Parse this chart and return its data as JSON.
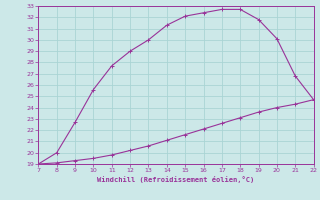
{
  "xlabel": "Windchill (Refroidissement éolien,°C)",
  "x_main": [
    7,
    8,
    9,
    10,
    11,
    12,
    13,
    14,
    15,
    16,
    17,
    18,
    19,
    20,
    21,
    22
  ],
  "y_main": [
    19.0,
    20.0,
    22.7,
    25.6,
    27.7,
    29.0,
    30.0,
    31.3,
    32.1,
    32.4,
    32.7,
    32.7,
    31.8,
    30.1,
    26.8,
    24.7
  ],
  "x_ref": [
    7,
    8,
    9,
    10,
    11,
    12,
    13,
    14,
    15,
    16,
    17,
    18,
    19,
    20,
    21,
    22
  ],
  "y_ref": [
    19.0,
    19.1,
    19.3,
    19.5,
    19.8,
    20.2,
    20.6,
    21.1,
    21.6,
    22.1,
    22.6,
    23.1,
    23.6,
    24.0,
    24.3,
    24.7
  ],
  "line_color": "#993399",
  "bg_color": "#cce8e8",
  "grid_color": "#aad4d4",
  "axis_color": "#993399",
  "tick_color": "#993399",
  "label_color": "#993399",
  "ylim": [
    19,
    33
  ],
  "xlim": [
    7,
    22
  ],
  "yticks": [
    19,
    20,
    21,
    22,
    23,
    24,
    25,
    26,
    27,
    28,
    29,
    30,
    31,
    32,
    33
  ],
  "xticks": [
    7,
    8,
    9,
    10,
    11,
    12,
    13,
    14,
    15,
    16,
    17,
    18,
    19,
    20,
    21,
    22
  ]
}
